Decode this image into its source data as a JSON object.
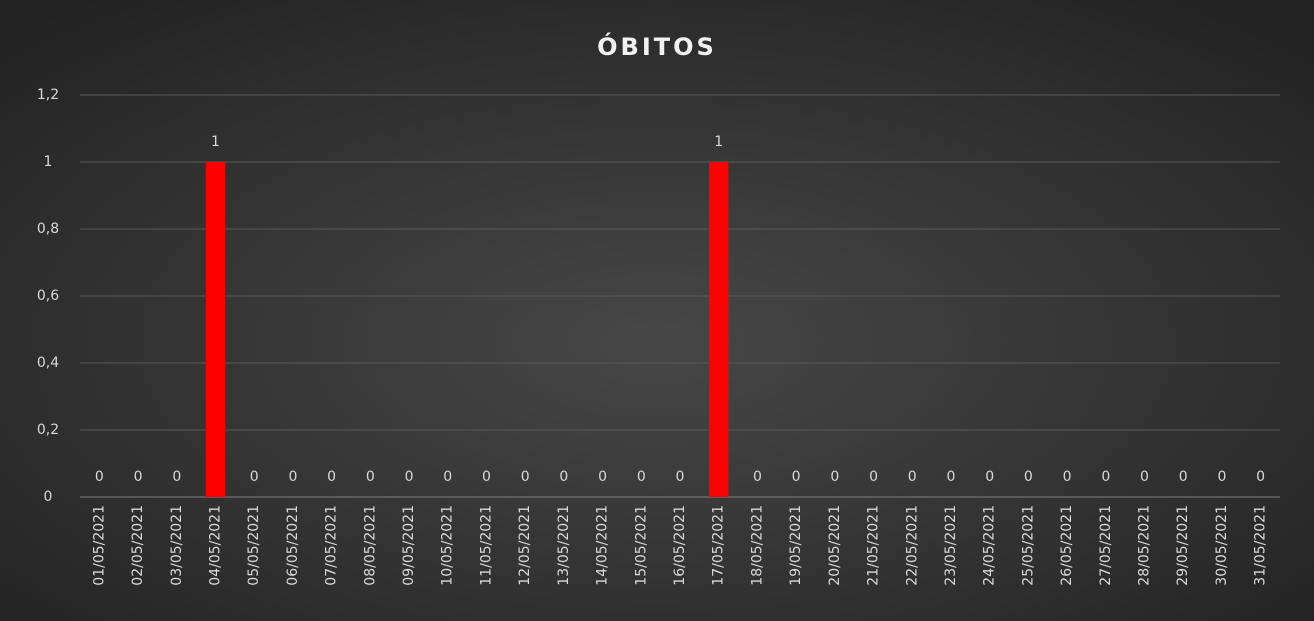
{
  "chart_data": {
    "type": "bar",
    "title": "ÓBITOS",
    "categories": [
      "01/05/2021",
      "02/05/2021",
      "03/05/2021",
      "04/05/2021",
      "05/05/2021",
      "06/05/2021",
      "07/05/2021",
      "08/05/2021",
      "09/05/2021",
      "10/05/2021",
      "11/05/2021",
      "12/05/2021",
      "13/05/2021",
      "14/05/2021",
      "15/05/2021",
      "16/05/2021",
      "17/05/2021",
      "18/05/2021",
      "19/05/2021",
      "20/05/2021",
      "21/05/2021",
      "22/05/2021",
      "23/05/2021",
      "24/05/2021",
      "25/05/2021",
      "26/05/2021",
      "27/05/2021",
      "28/05/2021",
      "29/05/2021",
      "30/05/2021",
      "31/05/2021"
    ],
    "values": [
      0,
      0,
      0,
      1,
      0,
      0,
      0,
      0,
      0,
      0,
      0,
      0,
      0,
      0,
      0,
      0,
      1,
      0,
      0,
      0,
      0,
      0,
      0,
      0,
      0,
      0,
      0,
      0,
      0,
      0,
      0
    ],
    "color": "#ff0000",
    "ylim": [
      0,
      1.2
    ],
    "yticks": [
      0,
      {
        "value": 0.2,
        "label": "0,2"
      },
      {
        "value": 0.4,
        "label": "0,4"
      },
      {
        "value": 0.6,
        "label": "0,6"
      },
      {
        "value": 0.8,
        "label": "0,8"
      },
      1,
      {
        "value": 1.2,
        "label": "1,2"
      }
    ],
    "grid": true
  }
}
